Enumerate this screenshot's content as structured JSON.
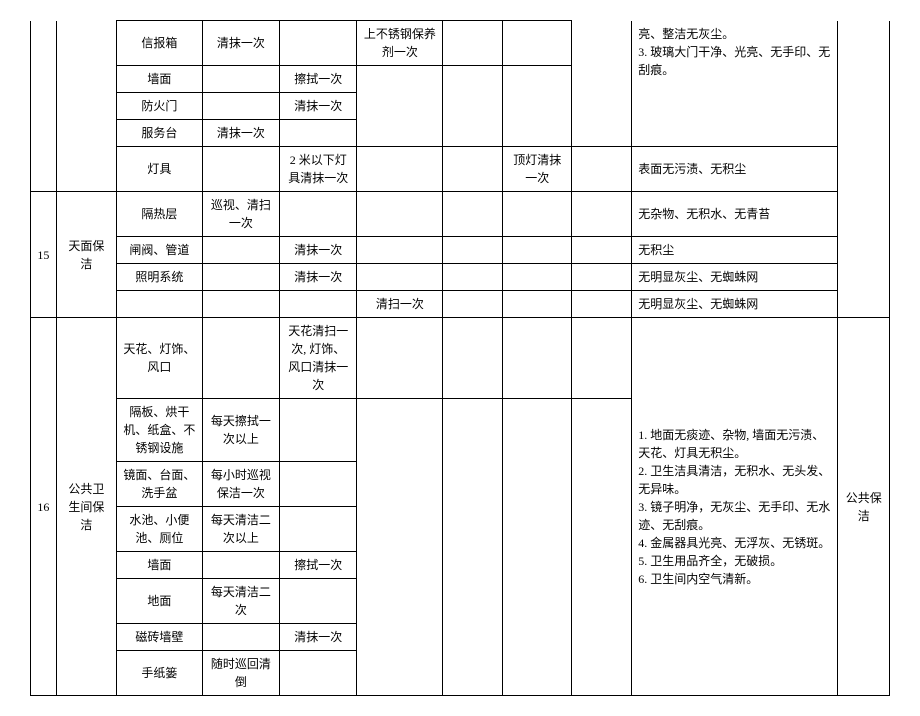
{
  "r1": {
    "c": "信报箱",
    "d": "清抹一次",
    "e": "",
    "f": "上不锈钢保养剂一次",
    "g": "",
    "h": ""
  },
  "r2": {
    "c": "墙面",
    "d": "",
    "e": "擦拭一次"
  },
  "r3": {
    "c": "防火门",
    "d": "",
    "e": "清抹一次"
  },
  "r4": {
    "c": "服务台",
    "d": "清抹一次",
    "e": ""
  },
  "r5": {
    "c": "灯具",
    "d": "",
    "e": "2 米以下灯具清抹一次",
    "f": "",
    "g": "",
    "h": "顶灯清抹一次",
    "i": "",
    "j": "表面无污渍、无积尘"
  },
  "r_top_j": "亮、整洁无灰尘。\n3. 玻璃大门干净、光亮、无手印、无刮痕。",
  "g15": {
    "a": "15",
    "b": "天面保洁"
  },
  "r6": {
    "c": "隔热层",
    "d": "巡视、清扫一次",
    "e": "",
    "f": "",
    "g": "",
    "h": "",
    "i": "",
    "j": "无杂物、无积水、无青苔"
  },
  "r7": {
    "c": "闸阀、管道",
    "d": "",
    "e": "清抹一次",
    "f": "",
    "g": "",
    "h": "",
    "i": "",
    "j": "无积尘"
  },
  "r8": {
    "c": "照明系统",
    "d": "",
    "e": "清抹一次",
    "f": "",
    "g": "",
    "h": "",
    "i": "",
    "j": "无明显灰尘、无蜘蛛网"
  },
  "r9": {
    "c": "",
    "d": "",
    "e": "",
    "f": "清扫一次",
    "g": "",
    "h": "",
    "i": "",
    "j": "无明显灰尘、无蜘蛛网"
  },
  "g16": {
    "a": "16",
    "b": "公共卫生间保洁",
    "k": "公共保洁"
  },
  "r10": {
    "c": "天花、灯饰、风口",
    "d": "",
    "e": "天花清扫一次, 灯饰、风口清抹一次",
    "f": "",
    "g": "",
    "h": "",
    "i": ""
  },
  "r11": {
    "c": "隔板、烘干机、纸盒、不锈钢设施",
    "d": "每天擦拭一次以上",
    "e": ""
  },
  "r12": {
    "c": "镜面、台面、洗手盆",
    "d": "每小时巡视保洁一次",
    "e": ""
  },
  "r13": {
    "c": "水池、小便池、厕位",
    "d": "每天清洁二次以上",
    "e": ""
  },
  "r14": {
    "c": "墙面",
    "d": "",
    "e": "擦拭一次"
  },
  "r15": {
    "c": "地面",
    "d": "每天清洁二次",
    "e": ""
  },
  "r16": {
    "c": "磁砖墙壁",
    "d": "",
    "e": "清抹一次"
  },
  "r17": {
    "c": "手纸篓",
    "d": "随时巡回清倒",
    "e": ""
  },
  "j16": "1. 地面无痰迹、杂物, 墙面无污渍、天花、灯具无积尘。\n2. 卫生洁具清洁，无积水、无头发、无异味。\n3. 镜子明净，无灰尘、无手印、无水迹、无刮痕。\n4. 金属器具光亮、无浮灰、无锈斑。\n5. 卫生用品齐全，无破损。\n6. 卫生间内空气清新。"
}
